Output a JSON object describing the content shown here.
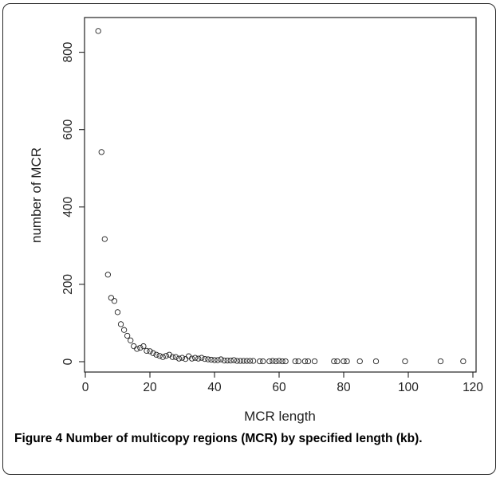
{
  "caption": {
    "label": "Figure 4",
    "text": "Number of multicopy regions (MCR) by specified length (kb)."
  },
  "chart_data": {
    "type": "scatter",
    "title": "",
    "xlabel": "MCR length",
    "ylabel": "number of MCR",
    "xlim": [
      0,
      122
    ],
    "ylim": [
      -25,
      880
    ],
    "xticks": [
      0,
      20,
      40,
      60,
      80,
      100,
      120
    ],
    "yticks": [
      0,
      200,
      400,
      600,
      800
    ],
    "grid": false,
    "marker": "open-circle",
    "series": [
      {
        "x": [
          4,
          5,
          6,
          7,
          8,
          9,
          10,
          11,
          12,
          13,
          14,
          15,
          16,
          17,
          18,
          19,
          20,
          21,
          22,
          23,
          24,
          25,
          26,
          27,
          28,
          29,
          30,
          31,
          32,
          33,
          34,
          35,
          36,
          37,
          38,
          39,
          40,
          41,
          42,
          43,
          44,
          45,
          46,
          47,
          48,
          49,
          50,
          51,
          52,
          54,
          55,
          57,
          58,
          59,
          60,
          61,
          62,
          65,
          66,
          68,
          69,
          71,
          77,
          78,
          80,
          81,
          85,
          90,
          99,
          110,
          117
        ],
        "y": [
          855,
          542,
          317,
          225,
          165,
          157,
          128,
          97,
          82,
          67,
          55,
          40,
          33,
          36,
          40,
          28,
          27,
          22,
          18,
          15,
          12,
          15,
          18,
          12,
          12,
          8,
          10,
          7,
          14,
          8,
          10,
          8,
          10,
          7,
          6,
          5,
          4,
          4,
          6,
          3,
          3,
          3,
          4,
          2,
          2,
          2,
          2,
          2,
          2,
          1,
          1,
          1,
          2,
          1,
          2,
          1,
          1,
          1,
          1,
          1,
          1,
          1,
          1,
          1,
          1,
          1,
          1,
          1,
          1,
          1,
          1
        ]
      }
    ]
  }
}
